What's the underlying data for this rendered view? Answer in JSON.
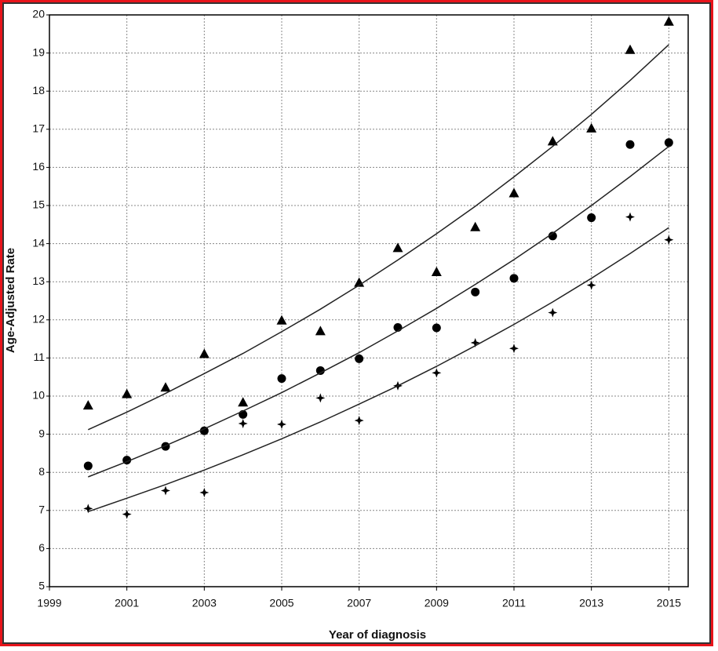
{
  "chart_data": {
    "type": "scatter",
    "x_label": "Year of diagnosis",
    "y_label": "Age-Adjusted Rate",
    "x": [
      2000,
      2001,
      2002,
      2003,
      2004,
      2005,
      2006,
      2007,
      2008,
      2009,
      2010,
      2011,
      2012,
      2013,
      2014,
      2015
    ],
    "xlim": [
      1999,
      2015.5
    ],
    "xticks": [
      1999,
      2001,
      2003,
      2005,
      2007,
      2009,
      2011,
      2013,
      2015
    ],
    "ylim": [
      5,
      20
    ],
    "yticks": [
      5,
      6,
      7,
      8,
      9,
      10,
      11,
      12,
      13,
      14,
      15,
      16,
      17,
      18,
      19,
      20
    ],
    "grid": true,
    "series": [
      {
        "color": "#000000",
        "marker": "triangle",
        "values": [
          9.75,
          10.05,
          10.22,
          11.1,
          9.83,
          11.98,
          11.7,
          12.97,
          13.88,
          13.25,
          14.43,
          15.32,
          16.68,
          17.02,
          19.08,
          19.82
        ]
      },
      {
        "color": "#000000",
        "marker": "circle",
        "values": [
          8.17,
          8.32,
          8.68,
          9.09,
          9.52,
          10.46,
          10.67,
          10.98,
          11.8,
          11.79,
          12.73,
          13.09,
          14.2,
          14.68,
          16.6,
          16.65
        ]
      },
      {
        "color": "#000000",
        "marker": "star",
        "values": [
          7.05,
          6.9,
          7.52,
          7.47,
          9.28,
          9.26,
          9.95,
          9.36,
          10.27,
          10.61,
          11.4,
          11.25,
          12.19,
          12.91,
          14.7,
          14.1
        ]
      },
      {
        "color": "#222222",
        "marker": "line",
        "values": [
          9.12,
          9.58,
          10.07,
          10.59,
          11.12,
          11.69,
          12.28,
          12.91,
          13.57,
          14.26,
          14.98,
          15.75,
          16.55,
          17.39,
          18.28,
          19.22
        ]
      },
      {
        "color": "#222222",
        "marker": "line",
        "values": [
          7.88,
          8.28,
          8.7,
          9.14,
          9.61,
          10.09,
          10.61,
          11.14,
          11.71,
          12.3,
          12.93,
          13.58,
          14.27,
          15.0,
          15.76,
          16.55
        ]
      },
      {
        "color": "#222222",
        "marker": "line",
        "values": [
          6.97,
          7.32,
          7.68,
          8.06,
          8.46,
          8.88,
          9.32,
          9.79,
          10.27,
          10.78,
          11.32,
          11.88,
          12.47,
          13.09,
          13.74,
          14.42
        ]
      }
    ]
  }
}
